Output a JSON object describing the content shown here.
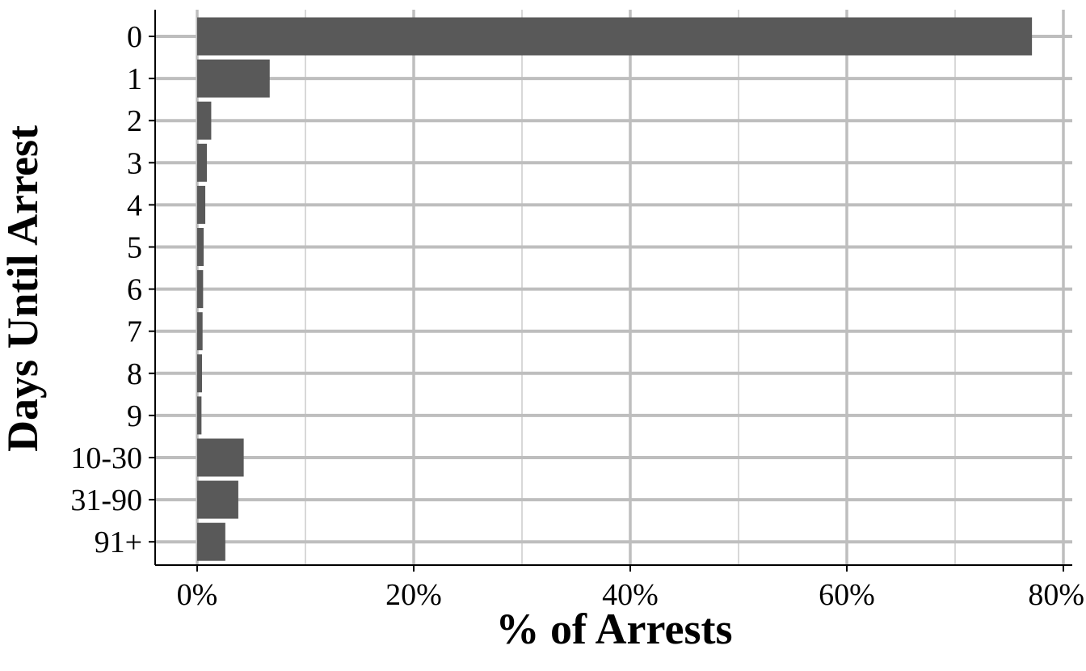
{
  "chart_data": {
    "type": "bar",
    "orientation": "horizontal",
    "xlabel": "% of Arrests",
    "ylabel": "Days Until Arrest",
    "categories": [
      "0",
      "1",
      "2",
      "3",
      "4",
      "5",
      "6",
      "7",
      "8",
      "9",
      "10-30",
      "31-90",
      "91+"
    ],
    "values": [
      77.1,
      6.7,
      1.3,
      0.9,
      0.75,
      0.6,
      0.55,
      0.5,
      0.45,
      0.4,
      4.3,
      3.8,
      2.6
    ],
    "xlim": [
      -3.8,
      80.5
    ],
    "xticks": [
      0,
      20,
      40,
      60,
      80
    ],
    "xtick_labels": [
      "0%",
      "20%",
      "40%",
      "60%",
      "80%"
    ],
    "grid": true,
    "bar_color": "#595959",
    "grid_color": "#bebebe"
  }
}
